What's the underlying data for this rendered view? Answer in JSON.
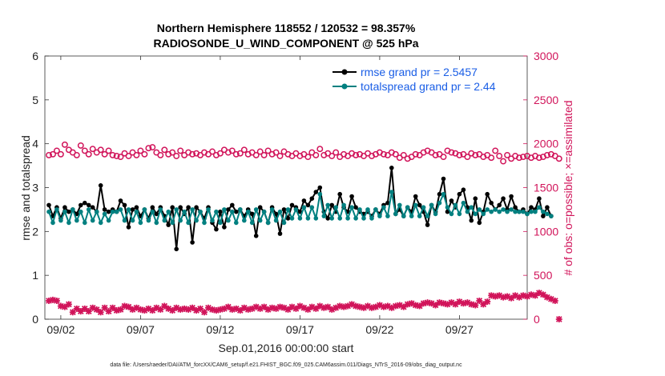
{
  "chart_data": {
    "type": "line",
    "title_line1": "Northern Hemisphere 118552 / 120532 = 98.357%",
    "title_line2": "RADIOSONDE_U_WIND_COMPONENT @ 525 hPa",
    "xlabel": "Sep.01,2016 00:00:00 start",
    "ylabel_left": "rmse and totalspread",
    "ylabel_right": "# of obs: o=possible; ×=assimilated",
    "footer": "data file: /Users/raeder/DAI/ATM_forcXX/CAM6_setup/f.e21.FHIST_BGC.f09_025.CAM6assim.011/Diags_NTrS_2016-09/obs_diag_output.nc",
    "x_tick_labels": [
      "09/02",
      "09/07",
      "09/12",
      "09/17",
      "09/22",
      "09/27"
    ],
    "x_tick_days": [
      2,
      7,
      12,
      17,
      22,
      27
    ],
    "xlim_days": [
      1.0,
      31.25
    ],
    "ylim_left": [
      0,
      6
    ],
    "y_ticks_left": [
      "0",
      "1",
      "2",
      "3",
      "4",
      "5",
      "6"
    ],
    "ylim_right": [
      0,
      3000
    ],
    "y_ticks_right": [
      "0",
      "500",
      "1000",
      "1500",
      "2000",
      "2500",
      "3000"
    ],
    "x_start_day": 1.25,
    "x_step_days": 0.25,
    "legend": [
      {
        "name": "rmse grand pr = 2.5457",
        "color": "#000000"
      },
      {
        "name": "totalspread grand pr = 2.44",
        "color": "#008080"
      }
    ],
    "series": [
      {
        "name": "rmse",
        "color": "#000000",
        "axis": "left",
        "values": [
          2.6,
          2.35,
          2.55,
          2.3,
          2.55,
          2.45,
          2.5,
          2.4,
          2.6,
          2.65,
          2.6,
          2.55,
          2.45,
          3.05,
          2.5,
          2.45,
          2.5,
          2.45,
          2.7,
          2.6,
          2.1,
          2.5,
          2.55,
          2.35,
          2.5,
          2.3,
          2.55,
          2.4,
          2.55,
          2.35,
          2.15,
          2.55,
          1.6,
          2.55,
          2.4,
          2.55,
          1.75,
          2.55,
          2.45,
          2.3,
          2.55,
          2.2,
          2.05,
          2.45,
          2.1,
          2.5,
          2.6,
          2.45,
          2.5,
          2.35,
          2.5,
          2.4,
          1.9,
          2.55,
          2.45,
          2.2,
          2.55,
          2.4,
          1.95,
          2.5,
          2.3,
          2.6,
          2.55,
          2.45,
          2.7,
          2.6,
          2.75,
          2.9,
          3.0,
          2.45,
          2.3,
          2.6,
          2.45,
          2.85,
          2.55,
          2.45,
          2.8,
          2.55,
          2.45,
          2.4,
          2.45,
          2.35,
          2.5,
          2.4,
          2.6,
          2.65,
          3.45,
          2.4,
          2.5,
          2.35,
          2.55,
          2.45,
          2.8,
          2.6,
          2.45,
          2.15,
          2.6,
          2.45,
          2.85,
          3.2,
          2.45,
          2.7,
          2.55,
          2.85,
          2.95,
          2.55,
          2.25,
          2.75,
          2.2,
          2.45,
          2.85,
          2.65,
          2.5,
          2.6,
          2.75,
          2.5,
          2.8,
          2.55,
          2.45,
          2.5,
          2.4,
          2.55,
          2.5,
          2.75,
          2.35,
          2.55,
          2.35
        ]
      },
      {
        "name": "totalspread",
        "color": "#008080",
        "axis": "left",
        "values": [
          2.45,
          2.2,
          2.5,
          2.25,
          2.45,
          2.2,
          2.5,
          2.25,
          2.45,
          2.2,
          2.5,
          2.25,
          2.45,
          2.2,
          2.4,
          2.25,
          2.45,
          2.45,
          2.5,
          2.25,
          2.5,
          2.25,
          2.45,
          2.2,
          2.5,
          2.25,
          2.45,
          2.2,
          2.5,
          2.25,
          2.45,
          2.2,
          2.5,
          2.25,
          2.45,
          2.2,
          2.5,
          2.25,
          2.45,
          2.2,
          2.5,
          2.25,
          2.45,
          2.2,
          2.5,
          2.25,
          2.45,
          2.2,
          2.5,
          2.25,
          2.45,
          2.2,
          2.5,
          2.25,
          2.45,
          2.2,
          2.5,
          2.25,
          2.45,
          2.2,
          2.5,
          2.3,
          2.5,
          2.3,
          2.55,
          2.3,
          2.55,
          2.3,
          2.85,
          2.35,
          2.6,
          2.3,
          2.55,
          2.3,
          2.6,
          2.3,
          2.55,
          2.3,
          2.5,
          2.3,
          2.5,
          2.3,
          2.5,
          2.35,
          2.55,
          2.35,
          2.9,
          2.4,
          2.6,
          2.35,
          2.55,
          2.35,
          2.6,
          2.35,
          2.55,
          2.35,
          2.6,
          2.4,
          2.65,
          2.85,
          2.55,
          2.4,
          2.6,
          2.4,
          2.65,
          2.45,
          2.55,
          2.4,
          2.5,
          2.4,
          2.5,
          2.45,
          2.5,
          2.45,
          2.5,
          2.45,
          2.5,
          2.45,
          2.45,
          2.45,
          2.4,
          2.45,
          2.45,
          2.55,
          2.45,
          2.4,
          2.35
        ]
      },
      {
        "name": "possible",
        "color": "#d1145a",
        "axis": "right",
        "marker": "circle",
        "values": [
          1870,
          1880,
          1920,
          1880,
          1990,
          1930,
          1900,
          1870,
          1980,
          1920,
          1880,
          1940,
          1900,
          1930,
          1880,
          1920,
          1870,
          1860,
          1850,
          1890,
          1860,
          1900,
          1870,
          1920,
          1880,
          1950,
          1960,
          1900,
          1870,
          1930,
          1880,
          1900,
          1860,
          1920,
          1870,
          1900,
          1880,
          1890,
          1870,
          1900,
          1880,
          1910,
          1870,
          1890,
          1930,
          1900,
          1920,
          1880,
          1890,
          1930,
          1880,
          1900,
          1870,
          1910,
          1870,
          1920,
          1880,
          1900,
          1860,
          1910,
          1880,
          1860,
          1890,
          1860,
          1880,
          1850,
          1900,
          1870,
          1940,
          1870,
          1890,
          1860,
          1900,
          1850,
          1880,
          1860,
          1890,
          1870,
          1880,
          1860,
          1890,
          1860,
          1880,
          1900,
          1880,
          1870,
          1900,
          1880,
          1840,
          1870,
          1830,
          1850,
          1880,
          1870,
          1900,
          1920,
          1900,
          1870,
          1880,
          1850,
          1920,
          1900,
          1890,
          1870,
          1880,
          1850,
          1890,
          1870,
          1880,
          1850,
          1870,
          1840,
          1920,
          1860,
          1800,
          1870,
          1830,
          1860,
          1840,
          1850,
          1860,
          1840,
          1860,
          1840,
          1850,
          1870,
          1880,
          1860,
          1830
        ]
      },
      {
        "name": "assimilated",
        "color": "#d1145a",
        "axis": "right",
        "marker": "cross",
        "values": [
          210,
          220,
          210,
          150,
          140,
          170,
          80,
          120,
          90,
          120,
          90,
          130,
          110,
          80,
          130,
          90,
          130,
          100,
          110,
          150,
          140,
          110,
          130,
          110,
          100,
          120,
          100,
          130,
          110,
          150,
          120,
          100,
          130,
          110,
          120,
          110,
          130,
          100,
          120,
          80,
          130,
          110,
          100,
          110,
          120,
          140,
          110,
          120,
          100,
          130,
          110,
          120,
          140,
          120,
          140,
          110,
          130,
          120,
          140,
          130,
          110,
          140,
          120,
          150,
          130,
          110,
          140,
          120,
          150,
          130,
          140,
          110,
          130,
          150,
          140,
          150,
          170,
          150,
          140,
          130,
          150,
          130,
          140,
          160,
          140,
          150,
          130,
          150,
          160,
          140,
          170,
          180,
          160,
          150,
          180,
          190,
          180,
          160,
          190,
          180,
          170,
          190,
          170,
          200,
          180,
          190,
          170,
          160,
          210,
          170,
          200,
          270,
          260,
          270,
          250,
          260,
          240,
          270,
          250,
          270,
          260,
          280,
          270,
          300,
          280,
          250,
          230,
          210,
          0
        ]
      }
    ]
  }
}
